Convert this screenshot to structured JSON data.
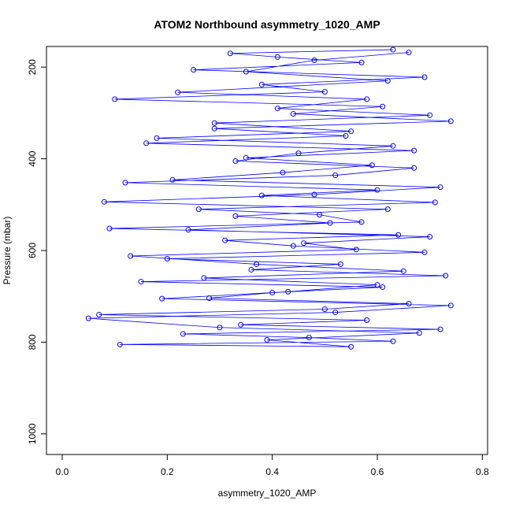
{
  "chart_data": {
    "type": "line",
    "title": "ATOM2 Northbound asymmetry_1020_AMP",
    "xlabel": "asymmetry_1020_AMP",
    "ylabel": "Pressure (mbar)",
    "xlim": [
      -0.03,
      0.81
    ],
    "ylim": [
      1045,
      155
    ],
    "y_reversed": true,
    "x_ticks": [
      0.0,
      0.2,
      0.4,
      0.6,
      0.8
    ],
    "x_tick_labels": [
      "0.0",
      "0.2",
      "0.4",
      "0.6",
      "0.8"
    ],
    "y_ticks": [
      200,
      400,
      600,
      800,
      1000
    ],
    "y_tick_labels": [
      "200",
      "400",
      "600",
      "800",
      "1000"
    ],
    "grid": false,
    "legend": "none",
    "color": "#0000ff",
    "marker": "open-circle",
    "series_x_range": [
      0.01,
      0.77
    ],
    "series_y_range": [
      160,
      812
    ],
    "series": [
      {
        "x": [
          0.66,
          0.48,
          0.35,
          0.62,
          0.22,
          0.58,
          0.41,
          0.7,
          0.29,
          0.55,
          0.18,
          0.63,
          0.45,
          0.33,
          0.67,
          0.52,
          0.12,
          0.6,
          0.38,
          0.71,
          0.26,
          0.49,
          0.57,
          0.09,
          0.64,
          0.31,
          0.44,
          0.69,
          0.2,
          0.53,
          0.36,
          0.73,
          0.15,
          0.61,
          0.4,
          0.28,
          0.66,
          0.5,
          0.07,
          0.58,
          0.34,
          0.72,
          0.23,
          0.47,
          0.63,
          0.11,
          0.55,
          0.39,
          0.68,
          0.3,
          0.05,
          0.52,
          0.74,
          0.19,
          0.43,
          0.6,
          0.27,
          0.65,
          0.37,
          0.13,
          0.56,
          0.46,
          0.7,
          0.24,
          0.51,
          0.33,
          0.62,
          0.08,
          0.48,
          0.72,
          0.21,
          0.42,
          0.59,
          0.35,
          0.67,
          0.16,
          0.54,
          0.29,
          0.74,
          0.44,
          0.61,
          0.1,
          0.5,
          0.38,
          0.69,
          0.25,
          0.57,
          0.41,
          0.32,
          0.63
        ],
        "y": [
          168,
          185,
          210,
          230,
          255,
          270,
          290,
          305,
          322,
          340,
          355,
          372,
          388,
          405,
          420,
          436,
          452,
          468,
          480,
          495,
          510,
          522,
          538,
          552,
          566,
          578,
          590,
          604,
          618,
          630,
          642,
          655,
          668,
          680,
          692,
          704,
          716,
          728,
          740,
          752,
          762,
          772,
          782,
          790,
          798,
          805,
          810,
          795,
          780,
          768,
          748,
          735,
          720,
          705,
          690,
          675,
          660,
          645,
          630,
          612,
          598,
          584,
          570,
          555,
          540,
          525,
          510,
          494,
          478,
          462,
          446,
          430,
          414,
          398,
          382,
          366,
          350,
          334,
          318,
          302,
          286,
          270,
          254,
          238,
          222,
          206,
          190,
          178,
          170,
          162
        ]
      }
    ]
  }
}
